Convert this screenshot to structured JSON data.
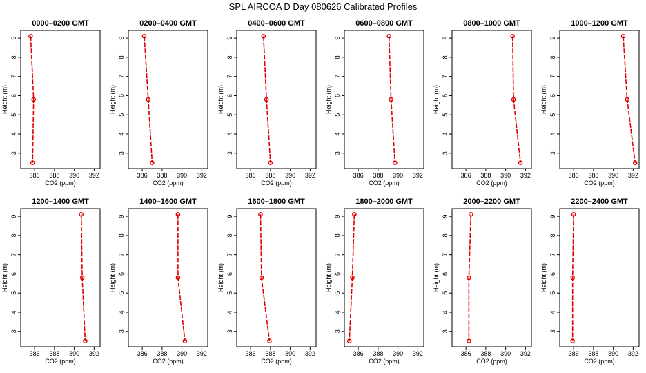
{
  "title": "SPL AIRCOA D  Day 080626  Calibrated Profiles",
  "chart_data": {
    "type": "line",
    "xlabel": "CO2 (ppm)",
    "ylabel": "Height (m)",
    "xlim": [
      384.6,
      392.6
    ],
    "ylim": [
      2.2,
      9.4
    ],
    "xticks": [
      386,
      388,
      390,
      392
    ],
    "yticks": [
      3,
      4,
      5,
      6,
      7,
      8,
      9
    ],
    "grid": false,
    "line_color": "#e00000",
    "panels": [
      {
        "title": "0000–0200 GMT",
        "x": [
          385.6,
          385.9,
          385.8
        ],
        "y": [
          9.1,
          5.8,
          2.5
        ]
      },
      {
        "title": "0200–0400 GMT",
        "x": [
          386.2,
          386.6,
          387.0
        ],
        "y": [
          9.1,
          5.8,
          2.5
        ]
      },
      {
        "title": "0400–0600 GMT",
        "x": [
          387.3,
          387.6,
          388.0
        ],
        "y": [
          9.1,
          5.8,
          2.5
        ]
      },
      {
        "title": "0600–0800 GMT",
        "x": [
          389.1,
          389.3,
          389.7
        ],
        "y": [
          9.1,
          5.8,
          2.5
        ]
      },
      {
        "title": "0800–1000 GMT",
        "x": [
          390.7,
          390.8,
          391.5
        ],
        "y": [
          9.1,
          5.8,
          2.5
        ]
      },
      {
        "title": "1000–1200 GMT",
        "x": [
          391.0,
          391.4,
          392.2
        ],
        "y": [
          9.1,
          5.8,
          2.5
        ]
      },
      {
        "title": "1200–1400 GMT",
        "x": [
          390.7,
          390.8,
          391.1
        ],
        "y": [
          9.1,
          5.8,
          2.5
        ]
      },
      {
        "title": "1400–1600 GMT",
        "x": [
          389.6,
          389.6,
          390.3
        ],
        "y": [
          9.1,
          5.8,
          2.5
        ]
      },
      {
        "title": "1600–1800 GMT",
        "x": [
          387.0,
          387.1,
          387.9
        ],
        "y": [
          9.1,
          5.8,
          2.5
        ]
      },
      {
        "title": "1800–2000 GMT",
        "x": [
          385.6,
          385.4,
          385.1
        ],
        "y": [
          9.1,
          5.8,
          2.5
        ]
      },
      {
        "title": "2000–2200 GMT",
        "x": [
          386.5,
          386.3,
          386.3
        ],
        "y": [
          9.1,
          5.8,
          2.5
        ]
      },
      {
        "title": "2200–2400 GMT",
        "x": [
          386.0,
          385.9,
          385.9
        ],
        "y": [
          9.1,
          5.8,
          2.5
        ]
      }
    ]
  }
}
